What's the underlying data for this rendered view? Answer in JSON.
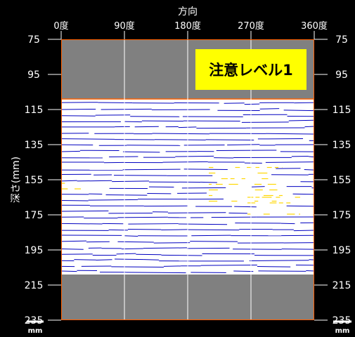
{
  "chart_data": {
    "type": "heatmap",
    "title": "",
    "xlabel": "方向",
    "ylabel": "深さ(mm)",
    "x_tick_labels": [
      "0度",
      "90度",
      "180度",
      "270度",
      "360度"
    ],
    "x_ticks": [
      0,
      90,
      180,
      270,
      360
    ],
    "xlim": [
      0,
      360
    ],
    "y_ticks": [
      75,
      95,
      115,
      135,
      155,
      175,
      195,
      215,
      235
    ],
    "y_tick_labels": [
      "75",
      "95",
      "115",
      "135",
      "155",
      "175",
      "195",
      "215",
      "235"
    ],
    "ylim": [
      75,
      235
    ],
    "y_inverted": true,
    "unit": "mm",
    "scanned_depth_range": [
      109,
      209
    ],
    "grid": true,
    "annotation": "注意レベル1",
    "colors": {
      "background": "#000000",
      "unscanned": "#808080",
      "scan_background": "#ffffff",
      "layer_line": "#0000c0",
      "anomaly": "#ffd700",
      "boundary": "#ff6000",
      "grid": "#ffffff",
      "badge": "#ffff00"
    },
    "anomalies": [
      {
        "angle_from": 0,
        "angle_to": 35,
        "depth_from": 157,
        "depth_to": 163
      },
      {
        "angle_from": 210,
        "angle_to": 315,
        "depth_from": 148,
        "depth_to": 168
      },
      {
        "angle_from": 265,
        "angle_to": 340,
        "depth_from": 165,
        "depth_to": 175
      }
    ]
  }
}
